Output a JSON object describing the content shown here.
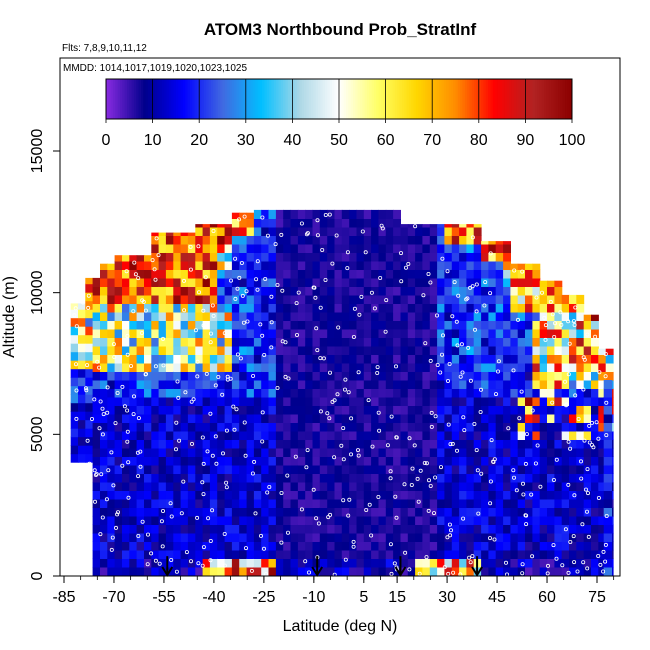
{
  "chart_data": {
    "type": "heatmap",
    "title": "ATOM3 Northbound Prob_StratInf",
    "flights_label": "Flts: 7,8,9,10,11,12",
    "mmdd_label": "MMDD: 1014,1017,1019,1020,1023,1025",
    "xlabel": "Latitude (deg N)",
    "ylabel": "Altitude (m)",
    "xlim": [
      -85,
      80
    ],
    "ylim": [
      0,
      15000
    ],
    "x_ticks": [
      "-85",
      "-70",
      "-55",
      "-40",
      "-25",
      "-10",
      "5",
      "15",
      "30",
      "45",
      "60",
      "75"
    ],
    "x_tick_values": [
      -85,
      -70,
      -55,
      -40,
      -25,
      -10,
      5,
      15,
      30,
      45,
      60,
      75
    ],
    "y_ticks": [
      "0",
      "5000",
      "10000",
      "15000"
    ],
    "y_tick_values": [
      0,
      5000,
      10000,
      15000
    ],
    "colorbar": {
      "min": 0,
      "max": 100,
      "ticks": [
        "0",
        "10",
        "20",
        "30",
        "40",
        "50",
        "60",
        "70",
        "80",
        "90",
        "100"
      ],
      "tick_values": [
        0,
        10,
        20,
        30,
        40,
        50,
        60,
        70,
        80,
        90,
        100
      ]
    },
    "colormap": [
      "#8a2be2",
      "#00008b",
      "#0000ff",
      "#4169e1",
      "#00bfff",
      "#add8e6",
      "#ffffff",
      "#ffff66",
      "#ffd700",
      "#ff8c00",
      "#ff0000",
      "#b22222",
      "#8b0000"
    ],
    "profile_markers_lat": [
      -54,
      -9,
      16,
      39
    ],
    "grid": false,
    "legend": "colorbar top"
  }
}
